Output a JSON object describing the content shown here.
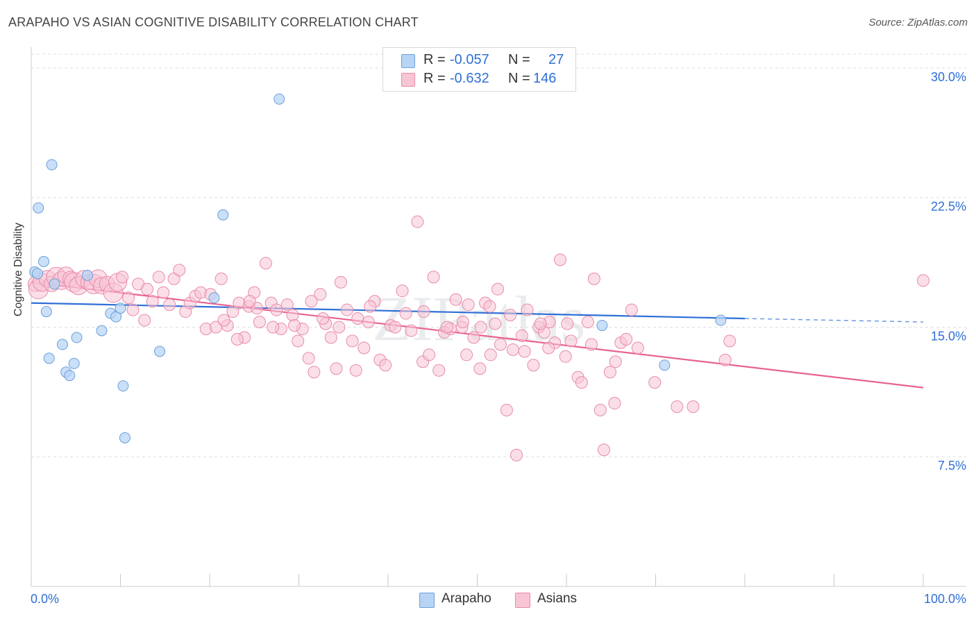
{
  "title": "ARAPAHO VS ASIAN COGNITIVE DISABILITY CORRELATION CHART",
  "source": "Source: ZipAtlas.com",
  "watermark": "ZIPatlas",
  "legend": {
    "r_label": "R =",
    "n_label": "N =",
    "rows": [
      {
        "r": "-0.057",
        "n": "27",
        "fill": "#b8d4f5",
        "stroke": "#6a9fd8"
      },
      {
        "r": "-0.632",
        "n": "146",
        "fill": "#f8c5d5",
        "stroke": "#e88aa8"
      }
    ]
  },
  "colors": {
    "arapaho_fill": "#b8d4f5",
    "arapaho_stroke": "#6a9fd8",
    "arapaho_line": "#2e6fd6",
    "asians_fill": "#f8c5d5",
    "asians_stroke": "#e88aa8",
    "asians_line": "#e8628e",
    "value_text": "#2e6fd6",
    "grid": "#dddddd"
  },
  "chart_data": {
    "type": "scatter",
    "title": "ARAPAHO VS ASIAN COGNITIVE DISABILITY CORRELATION CHART",
    "xlabel": "",
    "ylabel": "Cognitive Disability",
    "x_ticks": [
      "0.0%",
      "100.0%"
    ],
    "y_ticks": [
      "7.5%",
      "15.0%",
      "22.5%",
      "30.0%"
    ],
    "y_tick_values": [
      7.5,
      15.0,
      22.5,
      30.0
    ],
    "xlim": [
      0,
      100
    ],
    "ylim": [
      0,
      30.8
    ],
    "grid": "horizontal dashed",
    "legend_position": "bottom-center",
    "series": [
      {
        "name": "Arapaho",
        "r": -0.057,
        "n": 27,
        "trend": {
          "x0": 0,
          "y0": 16.4,
          "x1": 80,
          "y1": 15.5,
          "dashed_to_x": 100,
          "dashed_to_y": 15.3
        },
        "points": [
          [
            0.4,
            18.2
          ],
          [
            0.7,
            18.1
          ],
          [
            0.8,
            21.9
          ],
          [
            1.4,
            18.8
          ],
          [
            1.7,
            15.9
          ],
          [
            2.0,
            13.2
          ],
          [
            2.3,
            24.4
          ],
          [
            2.6,
            17.5
          ],
          [
            3.5,
            14.0
          ],
          [
            3.9,
            12.4
          ],
          [
            4.3,
            12.2
          ],
          [
            4.8,
            12.9
          ],
          [
            5.1,
            14.4
          ],
          [
            6.3,
            18.0
          ],
          [
            7.9,
            14.8
          ],
          [
            8.9,
            15.8
          ],
          [
            9.5,
            15.6
          ],
          [
            10.0,
            16.1
          ],
          [
            10.3,
            11.6
          ],
          [
            10.5,
            8.6
          ],
          [
            14.4,
            13.6
          ],
          [
            20.5,
            16.7
          ],
          [
            21.5,
            21.5
          ],
          [
            27.8,
            28.2
          ],
          [
            64.0,
            15.1
          ],
          [
            71.0,
            12.8
          ],
          [
            77.3,
            15.4
          ]
        ]
      },
      {
        "name": "Asians",
        "r": -0.632,
        "n": 146,
        "trend": {
          "x0": 0,
          "y0": 17.6,
          "x1": 100,
          "y1": 11.5
        },
        "points": [
          [
            0.5,
            17.5
          ],
          [
            0.8,
            17.2
          ],
          [
            1.2,
            17.6
          ],
          [
            1.8,
            17.8
          ],
          [
            2.3,
            17.5
          ],
          [
            2.8,
            17.9
          ],
          [
            3.4,
            17.7
          ],
          [
            3.9,
            18.0
          ],
          [
            4.4,
            17.8
          ],
          [
            4.8,
            17.6
          ],
          [
            5.3,
            17.4
          ],
          [
            5.9,
            17.8
          ],
          [
            6.4,
            17.6
          ],
          [
            7.0,
            17.5
          ],
          [
            7.5,
            17.8
          ],
          [
            7.9,
            17.4
          ],
          [
            8.5,
            17.5
          ],
          [
            9.2,
            17.0
          ],
          [
            9.7,
            17.6
          ],
          [
            10.2,
            17.9
          ],
          [
            10.9,
            16.7
          ],
          [
            11.4,
            16.0
          ],
          [
            12.0,
            17.5
          ],
          [
            12.7,
            15.4
          ],
          [
            13.0,
            17.2
          ],
          [
            13.6,
            16.5
          ],
          [
            14.3,
            17.9
          ],
          [
            14.8,
            17.0
          ],
          [
            15.5,
            16.3
          ],
          [
            16.0,
            17.8
          ],
          [
            16.6,
            18.3
          ],
          [
            17.3,
            15.9
          ],
          [
            17.8,
            16.4
          ],
          [
            18.4,
            16.8
          ],
          [
            19.0,
            17.0
          ],
          [
            19.6,
            14.9
          ],
          [
            20.1,
            16.9
          ],
          [
            20.7,
            15.0
          ],
          [
            21.3,
            17.8
          ],
          [
            22.0,
            15.1
          ],
          [
            22.6,
            15.9
          ],
          [
            23.3,
            16.4
          ],
          [
            23.9,
            14.4
          ],
          [
            24.4,
            16.2
          ],
          [
            25.0,
            17.0
          ],
          [
            25.6,
            15.3
          ],
          [
            26.3,
            18.7
          ],
          [
            26.9,
            16.4
          ],
          [
            27.5,
            16.0
          ],
          [
            28.0,
            14.9
          ],
          [
            28.7,
            16.3
          ],
          [
            29.3,
            15.7
          ],
          [
            29.9,
            14.2
          ],
          [
            30.4,
            14.9
          ],
          [
            31.1,
            13.2
          ],
          [
            31.7,
            12.4
          ],
          [
            32.4,
            16.9
          ],
          [
            33.0,
            15.2
          ],
          [
            33.6,
            14.4
          ],
          [
            34.2,
            12.6
          ],
          [
            34.7,
            17.6
          ],
          [
            35.4,
            16.0
          ],
          [
            36.0,
            14.2
          ],
          [
            36.6,
            15.5
          ],
          [
            37.3,
            13.8
          ],
          [
            37.8,
            15.3
          ],
          [
            38.5,
            16.5
          ],
          [
            39.1,
            13.1
          ],
          [
            39.7,
            12.8
          ],
          [
            40.3,
            15.1
          ],
          [
            40.8,
            15.0
          ],
          [
            41.6,
            17.1
          ],
          [
            42.0,
            15.8
          ],
          [
            42.6,
            14.8
          ],
          [
            43.3,
            21.1
          ],
          [
            43.9,
            13.0
          ],
          [
            44.6,
            13.4
          ],
          [
            45.1,
            17.9
          ],
          [
            45.7,
            12.5
          ],
          [
            46.3,
            14.7
          ],
          [
            47.0,
            14.9
          ],
          [
            47.6,
            16.6
          ],
          [
            48.3,
            15.0
          ],
          [
            48.8,
            13.4
          ],
          [
            49.6,
            14.4
          ],
          [
            50.3,
            12.6
          ],
          [
            50.9,
            16.4
          ],
          [
            51.5,
            13.4
          ],
          [
            52.0,
            15.2
          ],
          [
            52.6,
            14.0
          ],
          [
            53.3,
            10.2
          ],
          [
            54.0,
            13.7
          ],
          [
            54.4,
            7.6
          ],
          [
            55.0,
            14.5
          ],
          [
            55.6,
            16.0
          ],
          [
            56.3,
            12.8
          ],
          [
            56.9,
            15.0
          ],
          [
            57.5,
            14.7
          ],
          [
            58.1,
            15.3
          ],
          [
            58.7,
            14.1
          ],
          [
            59.3,
            18.9
          ],
          [
            59.9,
            13.3
          ],
          [
            60.5,
            14.2
          ],
          [
            61.3,
            12.1
          ],
          [
            61.7,
            11.8
          ],
          [
            62.4,
            15.3
          ],
          [
            63.1,
            17.8
          ],
          [
            63.8,
            10.2
          ],
          [
            64.2,
            7.9
          ],
          [
            64.9,
            12.4
          ],
          [
            65.4,
            10.6
          ],
          [
            66.1,
            14.1
          ],
          [
            66.7,
            14.3
          ],
          [
            68.0,
            13.8
          ],
          [
            69.9,
            11.8
          ],
          [
            72.4,
            10.4
          ],
          [
            74.2,
            10.4
          ],
          [
            77.8,
            13.1
          ],
          [
            78.3,
            14.2
          ],
          [
            100.0,
            17.7
          ],
          [
            44.0,
            15.9
          ],
          [
            46.6,
            15.0
          ],
          [
            48.4,
            15.3
          ],
          [
            49.0,
            16.3
          ],
          [
            50.4,
            15.0
          ],
          [
            51.4,
            16.2
          ],
          [
            52.3,
            17.2
          ],
          [
            53.7,
            15.7
          ],
          [
            55.3,
            13.6
          ],
          [
            57.1,
            15.2
          ],
          [
            58.0,
            13.8
          ],
          [
            60.1,
            15.2
          ],
          [
            62.8,
            14.0
          ],
          [
            65.5,
            13.0
          ],
          [
            67.3,
            16.0
          ],
          [
            38.0,
            16.2
          ],
          [
            36.4,
            12.5
          ],
          [
            34.5,
            15.0
          ],
          [
            32.7,
            15.5
          ],
          [
            31.4,
            16.5
          ],
          [
            29.5,
            15.1
          ],
          [
            27.1,
            15.0
          ],
          [
            25.3,
            16.1
          ],
          [
            24.5,
            16.5
          ],
          [
            23.1,
            14.3
          ],
          [
            21.6,
            15.4
          ]
        ]
      }
    ]
  },
  "bottom_legend": [
    {
      "name": "Arapaho"
    },
    {
      "name": "Asians"
    }
  ]
}
